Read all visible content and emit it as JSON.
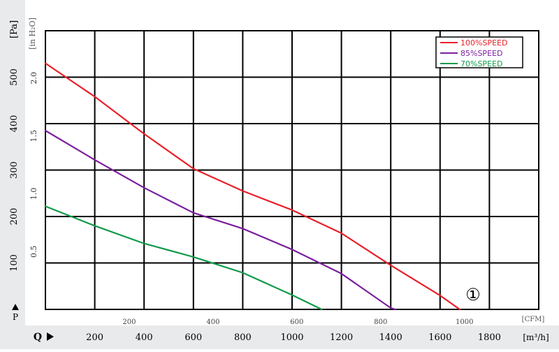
{
  "chart_data": {
    "type": "line",
    "title": "",
    "curve_marker": "①",
    "x_primary": {
      "label": "Q",
      "unit": "[m³/h]",
      "range": [
        0,
        2000
      ],
      "ticks": [
        200,
        400,
        600,
        800,
        1000,
        1200,
        1400,
        1600,
        1800
      ]
    },
    "x_secondary": {
      "unit": "[CFM]",
      "ticks": [
        200,
        400,
        600,
        800,
        1000
      ]
    },
    "y_primary": {
      "label": "P",
      "unit": "[Pa]",
      "range": [
        0,
        600
      ],
      "ticks": [
        100,
        200,
        300,
        400,
        500
      ]
    },
    "y_secondary": {
      "unit": "[in H₂O]",
      "ticks": [
        "0.5",
        "1.0",
        "1.5",
        "2.0"
      ],
      "tick_values_pa": [
        124.5,
        249,
        373.5,
        498
      ]
    },
    "legend_position": "top-right",
    "grid": true,
    "series": [
      {
        "name": "100%SPEED",
        "color": "#e8202a",
        "points": [
          [
            0,
            530
          ],
          [
            200,
            458
          ],
          [
            400,
            378
          ],
          [
            600,
            303
          ],
          [
            800,
            255
          ],
          [
            1000,
            214
          ],
          [
            1200,
            164
          ],
          [
            1400,
            95
          ],
          [
            1600,
            30
          ],
          [
            1680,
            0
          ]
        ]
      },
      {
        "name": "85%SPEED",
        "color": "#7b1f9e",
        "points": [
          [
            0,
            385
          ],
          [
            200,
            322
          ],
          [
            400,
            262
          ],
          [
            600,
            208
          ],
          [
            800,
            174
          ],
          [
            1000,
            129
          ],
          [
            1200,
            77
          ],
          [
            1400,
            3
          ],
          [
            1420,
            0
          ]
        ]
      },
      {
        "name": "70%SPEED",
        "color": "#119a4a",
        "points": [
          [
            0,
            222
          ],
          [
            200,
            180
          ],
          [
            400,
            142
          ],
          [
            600,
            113
          ],
          [
            800,
            79
          ],
          [
            1000,
            31
          ],
          [
            1120,
            0
          ]
        ]
      }
    ]
  }
}
